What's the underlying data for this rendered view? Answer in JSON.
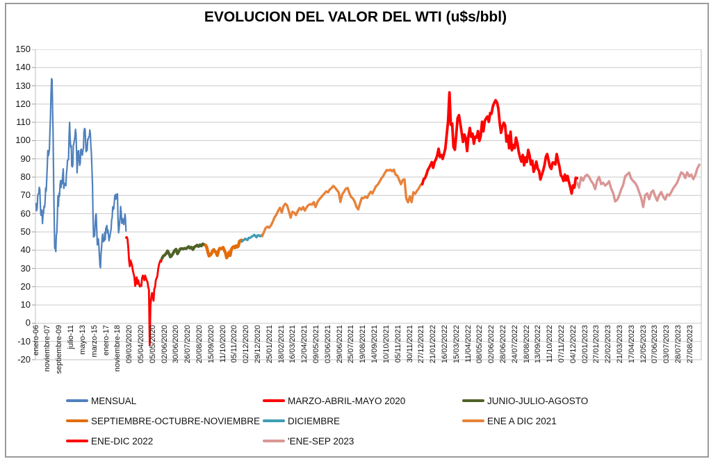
{
  "title": "EVOLUCION DEL VALOR DEL WTI (u$s/bbl)",
  "chart_data": {
    "type": "line",
    "title": "EVOLUCION DEL VALOR DEL WTI (u$s/bbl)",
    "ylabel": "",
    "xlabel": "",
    "ylim": [
      -20,
      150
    ],
    "ytick_step": 10,
    "grid": "horizontal",
    "legend_position": "bottom",
    "y_ticks": [
      150,
      140,
      130,
      120,
      110,
      100,
      90,
      80,
      70,
      60,
      50,
      40,
      30,
      20,
      10,
      0,
      -10,
      -20
    ],
    "x_labels": [
      "enero-06",
      "noviembre-07",
      "septiembre-09",
      "julio-11",
      "mayo-13",
      "marzo-15",
      "enero-17",
      "noviembre-18",
      "09/03/2020",
      "05/04/2020",
      "05/05/2020",
      "02/06/2020",
      "30/06/2020",
      "26/07/2020",
      "20/08/2020",
      "15/09/2020",
      "11/10/2020",
      "05/11/2020",
      "02/12/2020",
      "29/12/2020",
      "25/01/2021",
      "18/02/2021",
      "16/03/2021",
      "12/04/2021",
      "09/05/2021",
      "03/06/2021",
      "29/06/2021",
      "25/07/2021",
      "19/08/2021",
      "14/09/2021",
      "10/10/2021",
      "05/11/2021",
      "30/11/2021",
      "27/12/2021",
      "21/01/2022",
      "16/02/2022",
      "15/03/2022",
      "11/04/2022",
      "08/05/2022",
      "02/06/2022",
      "28/06/2022",
      "24/07/2022",
      "18/08/2022",
      "13/09/2022",
      "11/10/2022",
      "07/11/2022",
      "04/12/2022",
      "02/01/2023",
      "27/01/2023",
      "22/02/2023",
      "21/03/2023",
      "17/04/2023",
      "12/05/2023",
      "07/06/2023",
      "03/07/2023",
      "28/07/2023",
      "27/08/2023"
    ],
    "legend": [
      {
        "label": "MENSUAL",
        "color": "#4F81BD",
        "row": 0,
        "col": 0
      },
      {
        "label": "MARZO-ABRIL-MAYO 2020",
        "color": "#FE0000",
        "row": 0,
        "col": 1
      },
      {
        "label": "JUNIO-JULIO-AGOSTO",
        "color": "#4F6228",
        "row": 0,
        "col": 2
      },
      {
        "label": "SEPTIEMBRE-OCTUBRE-NOVIEMBRE",
        "color": "#E36C09",
        "row": 1,
        "col": 0
      },
      {
        "label": "DICIEMBRE",
        "color": "#3D9DB3",
        "row": 1,
        "col": 1
      },
      {
        "label": "ENE A DIC 2021",
        "color": "#E8823A",
        "row": 1,
        "col": 2
      },
      {
        "label": "ENE-DIC 2022",
        "color": "#FE0000",
        "row": 2,
        "col": 0
      },
      {
        "label": "'ENE-SEP 2023",
        "color": "#D99694",
        "row": 2,
        "col": 1
      }
    ],
    "series": [
      {
        "name": "MENSUAL",
        "color": "#4F81BD",
        "width": 2.2,
        "x0": 0.001,
        "x1": 0.136,
        "values": [
          65.5,
          61.6,
          62.9,
          69.7,
          70.9,
          71.0,
          74.4,
          73.1,
          63.9,
          59.1,
          59.4,
          62.0,
          54.6,
          59.3,
          60.6,
          64.0,
          63.5,
          67.5,
          74.1,
          72.4,
          79.6,
          85.7,
          94.6,
          91.7,
          93.0,
          95.4,
          105.6,
          112.6,
          125.4,
          133.9,
          133.4,
          116.7,
          103.9,
          76.7,
          57.4,
          41.0,
          41.7,
          39.2,
          48.0,
          49.8,
          59.2,
          69.7,
          64.1,
          71.1,
          69.5,
          75.8,
          78.1,
          74.3,
          78.2,
          76.4,
          81.2,
          84.5,
          73.8,
          75.4,
          76.4,
          76.6,
          75.3,
          81.9,
          84.3,
          89.2,
          89.4,
          89.6,
          102.9,
          110.0,
          101.3,
          96.3,
          97.3,
          86.3,
          85.6,
          86.4,
          97.2,
          98.6,
          100.3,
          102.3,
          106.2,
          103.3,
          94.7,
          82.3,
          87.9,
          94.1,
          94.5,
          89.5,
          86.5,
          87.9,
          94.8,
          95.3,
          92.9,
          92.0,
          94.5,
          95.8,
          104.7,
          106.6,
          106.3,
          100.5,
          93.9,
          97.6,
          94.6,
          100.8,
          100.8,
          102.1,
          102.2,
          105.8,
          103.6,
          96.5,
          93.2,
          84.4,
          75.8,
          59.3,
          47.2,
          50.6,
          47.8,
          54.4,
          59.3,
          59.8,
          51.2,
          42.9,
          45.5,
          46.2,
          42.4,
          37.2,
          31.7,
          30.3,
          37.6,
          41.0,
          46.7,
          48.8,
          44.7,
          44.7,
          45.2,
          49.8,
          45.7,
          52.0,
          52.5,
          53.5,
          49.3,
          51.1,
          48.5,
          45.2,
          46.6,
          48.0,
          49.8,
          51.6,
          56.6,
          57.9,
          63.7,
          62.2,
          62.7,
          66.3,
          70.0,
          67.9,
          70.6,
          68.1,
          70.2,
          70.8,
          57.0,
          49.5,
          51.4,
          55.0,
          58.2,
          63.9,
          60.8,
          54.7,
          57.4,
          54.8,
          56.9,
          54.0,
          57.0,
          59.8,
          57.5,
          50.5
        ]
      },
      {
        "name": "MARZO-ABRIL-MAYO 2020",
        "color": "#FE0000",
        "width": 2.8,
        "x0": 0.136,
        "x1": 0.19,
        "values": [
          46.8,
          47.2,
          46.0,
          41.3,
          34.4,
          31.1,
          34.4,
          33.0,
          31.5,
          28.7,
          26.9,
          25.2,
          20.4,
          22.4,
          25.1,
          21.5,
          23.5,
          21.8,
          20.1,
          20.5,
          20.3,
          24.7,
          26.1,
          25.3,
          23.6,
          26.1,
          24.8,
          23.4,
          22.8,
          19.9,
          18.3,
          -12.0,
          10.0,
          13.8,
          16.5,
          15.1,
          12.3,
          18.8,
          19.7,
          23.6,
          24.6,
          25.8,
          29.4,
          31.8,
          33.2,
          34.4,
          33.7,
          35.5
        ]
      },
      {
        "name": "JUNIO-JULIO-AGOSTO",
        "color": "#4F6228",
        "width": 4.2,
        "x0": 0.19,
        "x1": 0.2555,
        "values": [
          35.4,
          36.8,
          37.3,
          38.2,
          39.6,
          38.2,
          36.3,
          37.1,
          38.4,
          39.8,
          40.5,
          38.0,
          39.3,
          40.7,
          40.9,
          40.6,
          41.0,
          40.8,
          41.3,
          41.9,
          41.1,
          41.6,
          40.3,
          41.7,
          42.2,
          42.7,
          42.0,
          42.9,
          42.3,
          43.4,
          43.0,
          42.6
        ]
      },
      {
        "name": "SEPTIEMBRE-OCTUBRE-NOVIEMBRE",
        "color": "#E36C09",
        "width": 4.5,
        "x0": 0.2555,
        "x1": 0.31,
        "values": [
          42.8,
          41.5,
          38.9,
          36.8,
          37.3,
          38.1,
          39.6,
          40.3,
          39.3,
          38.7,
          37.1,
          39.4,
          40.9,
          41.0,
          40.8,
          41.5,
          39.9,
          38.6,
          35.8,
          36.8,
          38.8,
          37.1,
          40.3,
          41.4,
          41.9,
          41.3,
          42.4,
          41.7,
          42.2,
          44.9,
          45.3,
          45.5
        ]
      },
      {
        "name": "DICIEMBRE",
        "color": "#3D9DB3",
        "width": 3.2,
        "x0": 0.31,
        "x1": 0.3405,
        "values": [
          44.6,
          45.3,
          45.6,
          46.3,
          45.8,
          45.5,
          46.8,
          46.6,
          47.0,
          47.6,
          47.8,
          48.4,
          47.7,
          47.0,
          48.1,
          48.2,
          47.6,
          48.0,
          48.4
        ]
      },
      {
        "name": "ENE A DIC 2021",
        "color": "#E8823A",
        "width": 3.4,
        "x0": 0.3405,
        "x1": 0.581,
        "values": [
          47.6,
          49.9,
          52.2,
          52.9,
          52.3,
          53.6,
          55.7,
          58.0,
          59.5,
          61.5,
          63.2,
          60.6,
          64.0,
          65.4,
          64.6,
          61.4,
          57.8,
          61.0,
          60.5,
          59.2,
          61.4,
          63.1,
          62.1,
          63.6,
          61.7,
          63.5,
          64.7,
          65.2,
          64.9,
          66.3,
          63.6,
          66.2,
          67.7,
          68.8,
          70.0,
          71.0,
          72.2,
          71.6,
          73.3,
          74.0,
          75.2,
          74.2,
          72.9,
          71.7,
          66.4,
          70.6,
          72.0,
          73.6,
          74.1,
          71.3,
          69.1,
          68.3,
          66.6,
          63.7,
          62.3,
          65.6,
          68.7,
          68.5,
          69.3,
          68.6,
          70.5,
          72.0,
          71.0,
          73.1,
          75.0,
          75.9,
          77.6,
          79.3,
          80.5,
          82.3,
          83.9,
          83.6,
          84.1,
          83.2,
          84.1,
          81.3,
          80.8,
          78.5,
          76.1,
          78.4,
          78.8,
          68.2,
          66.2,
          69.5,
          66.3,
          71.7,
          70.9,
          72.4,
          73.8,
          75.6,
          76.6
        ]
      },
      {
        "name": "ENE-DIC 2022",
        "color": "#FE0000",
        "width": 3.8,
        "x0": 0.581,
        "x1": 0.8135,
        "values": [
          76.1,
          78.9,
          79.5,
          81.3,
          83.8,
          85.1,
          86.6,
          88.2,
          85.1,
          88.2,
          89.7,
          91.8,
          95.5,
          91.1,
          92.1,
          90.0,
          92.8,
          95.7,
          103.4,
          110.6,
          126.4,
          108.7,
          109.3,
          96.4,
          95.0,
          103.0,
          112.3,
          113.9,
          109.3,
          104.2,
          99.3,
          103.3,
          101.2,
          94.3,
          102.6,
          106.9,
          102.1,
          103.8,
          98.3,
          102.1,
          101.7,
          105.2,
          99.8,
          102.4,
          110.3,
          105.1,
          110.8,
          112.2,
          113.2,
          110.3,
          115.1,
          114.7,
          118.9,
          120.7,
          122.1,
          120.9,
          117.6,
          109.6,
          104.3,
          107.6,
          109.8,
          108.4,
          99.5,
          102.7,
          95.8,
          104.8,
          94.7,
          97.6,
          95.9,
          101.6,
          98.6,
          93.9,
          90.7,
          88.5,
          92.1,
          86.5,
          90.8,
          88.3,
          94.9,
          92.0,
          86.9,
          89.0,
          82.9,
          85.1,
          88.5,
          84.5,
          83.5,
          78.7,
          81.2,
          83.6,
          86.5,
          91.1,
          92.6,
          89.1,
          85.6,
          84.5,
          88.0,
          87.9,
          86.9,
          92.6,
          88.9,
          85.8,
          81.0,
          80.1,
          77.9,
          81.4,
          78.2,
          80.6,
          77.3,
          74.3,
          71.0,
          75.4,
          74.3,
          79.6,
          79.5
        ]
      },
      {
        "name": "'ENE-SEP 2023",
        "color": "#D99694",
        "width": 3.4,
        "x0": 0.8135,
        "x1": 0.997,
        "values": [
          76.9,
          74.2,
          79.9,
          78.1,
          80.5,
          81.3,
          80.1,
          77.9,
          76.4,
          73.4,
          78.1,
          80.1,
          76.2,
          76.9,
          75.4,
          76.3,
          77.7,
          73.8,
          71.3,
          66.7,
          67.6,
          69.9,
          73.2,
          75.7,
          80.4,
          81.5,
          82.5,
          79.2,
          77.9,
          76.8,
          74.8,
          71.7,
          68.6,
          63.6,
          70.1,
          71.1,
          67.9,
          71.6,
          72.7,
          69.5,
          67.1,
          70.2,
          71.8,
          69.2,
          67.7,
          70.5,
          69.9,
          71.8,
          73.9,
          75.4,
          77.0,
          79.9,
          82.6,
          81.8,
          79.5,
          82.6,
          80.4,
          81.4,
          78.9,
          81.1,
          84.6,
          86.8
        ]
      }
    ]
  },
  "colors": {
    "gridline": "#C9C9C9",
    "plot_border": "#BFBFBF",
    "axis_tick": "#9a9a9a",
    "text": "#141414"
  }
}
